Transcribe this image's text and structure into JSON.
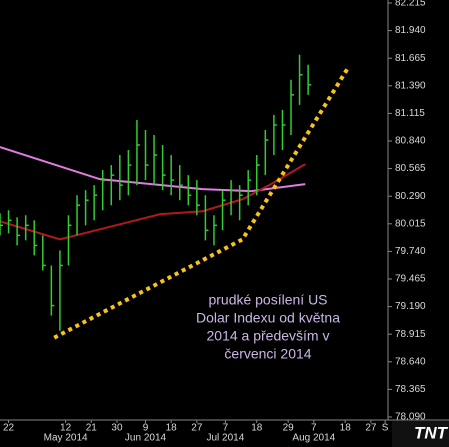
{
  "chart_data": {
    "type": "ohlc",
    "color": "#33cc33",
    "x": [
      "2014-04-19",
      "2014-04-22",
      "2014-04-25",
      "2014-04-28",
      "2014-05-01",
      "2014-05-04",
      "2014-05-07",
      "2014-05-10",
      "2014-05-13",
      "2014-05-16",
      "2014-05-19",
      "2014-05-22",
      "2014-05-25",
      "2014-05-28",
      "2014-05-31",
      "2014-06-03",
      "2014-06-06",
      "2014-06-09",
      "2014-06-12",
      "2014-06-15",
      "2014-06-18",
      "2014-06-21",
      "2014-06-24",
      "2014-06-27",
      "2014-06-30",
      "2014-07-03",
      "2014-07-06",
      "2014-07-09",
      "2014-07-12",
      "2014-07-15",
      "2014-07-18",
      "2014-07-21",
      "2014-07-24",
      "2014-07-27",
      "2014-07-30",
      "2014-08-02",
      "2014-08-05"
    ],
    "high": [
      80.12,
      80.15,
      80.08,
      80.1,
      80.05,
      79.9,
      79.6,
      79.75,
      80.1,
      80.3,
      80.35,
      80.4,
      80.55,
      80.6,
      80.7,
      80.75,
      81.05,
      80.95,
      80.9,
      80.8,
      80.7,
      80.6,
      80.5,
      80.45,
      80.3,
      80.1,
      80.35,
      80.45,
      80.4,
      80.55,
      80.7,
      80.95,
      81.1,
      81.15,
      81.45,
      81.7,
      81.6
    ],
    "low": [
      79.9,
      79.92,
      79.8,
      79.85,
      79.7,
      79.55,
      79.1,
      78.95,
      79.6,
      79.9,
      80.0,
      80.05,
      80.15,
      80.2,
      80.25,
      80.3,
      80.4,
      80.45,
      80.4,
      80.35,
      80.3,
      80.25,
      80.2,
      80.1,
      79.85,
      79.8,
      79.95,
      80.1,
      80.05,
      80.2,
      80.3,
      80.5,
      80.7,
      80.75,
      80.9,
      81.2,
      81.3
    ],
    "close": [
      80.0,
      80.05,
      79.9,
      80.0,
      79.8,
      79.6,
      79.2,
      79.6,
      80.0,
      80.2,
      80.25,
      80.3,
      80.45,
      80.5,
      80.4,
      80.6,
      80.8,
      80.6,
      80.7,
      80.5,
      80.45,
      80.4,
      80.3,
      80.2,
      79.95,
      80.0,
      80.25,
      80.35,
      80.3,
      80.45,
      80.6,
      80.85,
      81.0,
      81.0,
      81.3,
      81.5,
      81.4
    ],
    "series": [
      {
        "color": "#e27be2",
        "x": [
          "2014-04-19",
          "2014-05-24",
          "2014-06-29",
          "2014-07-16",
          "2014-08-04"
        ],
        "values": [
          80.78,
          80.46,
          80.36,
          80.34,
          80.41
        ]
      },
      {
        "color": "#b3181b",
        "x": [
          "2014-04-19",
          "2014-05-10",
          "2014-05-24",
          "2014-06-14",
          "2014-06-29",
          "2014-07-13",
          "2014-07-23",
          "2014-08-04"
        ],
        "values": [
          80.04,
          79.86,
          79.96,
          80.11,
          80.14,
          80.26,
          80.41,
          80.61
        ]
      }
    ],
    "trendline": {
      "color": "#f7c21a",
      "x": [
        "2014-05-08",
        "2014-07-13",
        "2014-08-19"
      ],
      "values": [
        78.88,
        79.86,
        81.57
      ]
    },
    "xlim": [
      "2014-04-19",
      "2014-09-02"
    ],
    "ylim": [
      78.06,
      82.245
    ],
    "yticks": [
      82.215,
      {
        "value": 81.94,
        "label": "81.940"
      },
      81.665,
      {
        "value": 81.39,
        "label": "81.390"
      },
      81.115,
      {
        "value": 80.84,
        "label": "80.840"
      },
      80.565,
      {
        "value": 80.29,
        "label": "80.290"
      },
      80.015,
      {
        "value": 79.74,
        "label": "79.740"
      },
      79.465,
      {
        "value": 79.19,
        "label": "79.190"
      },
      78.915,
      {
        "value": 78.64,
        "label": "78.640"
      },
      78.365,
      {
        "value": 78.09,
        "label": "78.090"
      }
    ],
    "xticks": [
      {
        "value": "2014-04-22",
        "label": "22"
      },
      {
        "value": "2014-05-12",
        "label": "12"
      },
      {
        "value": "2014-05-21",
        "label": "21"
      },
      {
        "value": "2014-05-30",
        "label": "30"
      },
      {
        "value": "2014-06-09",
        "label": "9"
      },
      {
        "value": "2014-06-18",
        "label": "18"
      },
      {
        "value": "2014-06-27",
        "label": "27"
      },
      {
        "value": "2014-07-07",
        "label": "7"
      },
      {
        "value": "2014-07-18",
        "label": "18"
      },
      {
        "value": "2014-07-29",
        "label": "29"
      },
      {
        "value": "2014-08-07",
        "label": "7"
      },
      {
        "value": "2014-08-18",
        "label": "18"
      },
      {
        "value": "2014-08-27",
        "label": "27"
      },
      {
        "value": "2014-09-01",
        "label": "S"
      }
    ],
    "month_ticks": [
      {
        "value": "2014-05-12",
        "label": "May 2014"
      },
      {
        "value": "2014-06-09",
        "label": "Jun 2014"
      },
      {
        "value": "2014-07-07",
        "label": "Jul 2014"
      },
      {
        "value": "2014-08-07",
        "label": "Aug 2014"
      }
    ],
    "annotation": [
      "prudké posílení US",
      "Dolar Indexu od května",
      "2014 a především v",
      "červenci 2014"
    ],
    "logo": "TNT"
  }
}
